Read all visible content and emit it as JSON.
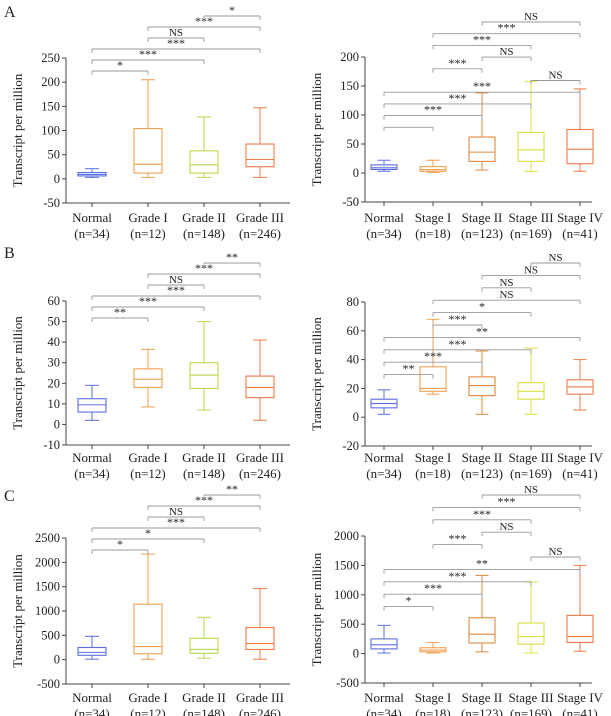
{
  "panel_labels": [
    "A",
    "B",
    "C"
  ],
  "colors": {
    "normal": "#5a6fe0",
    "grade_i": "#f0a050",
    "grade_ii": "#b8d84a",
    "grade_iii": "#ee7a48",
    "stage_i": "#f0a050",
    "stage_ii": "#e08a40",
    "stage_iii": "#d8e040",
    "stage_iv": "#ee7a48",
    "bracket": "#999999",
    "axis": "#444444"
  },
  "chart_data": [
    {
      "id": "A-grade",
      "panel": "A",
      "type": "box",
      "ylabel": "Transcript per million",
      "ylim": [
        -50,
        250
      ],
      "yticks": [
        -50,
        0,
        50,
        100,
        150,
        200,
        250
      ],
      "categories": [
        [
          "Normal",
          "(n=34)"
        ],
        [
          "Grade I",
          "(n=12)"
        ],
        [
          "Grade II",
          "(n=148)"
        ],
        [
          "Grade III",
          "(n=246)"
        ]
      ],
      "colors": [
        "normal",
        "grade_i",
        "grade_ii",
        "grade_iii"
      ],
      "boxes": [
        {
          "min": 3,
          "q1": 6,
          "median": 9,
          "q3": 13,
          "max": 21
        },
        {
          "min": 3,
          "q1": 12,
          "median": 30,
          "q3": 104,
          "max": 205
        },
        {
          "min": 3,
          "q1": 12,
          "median": 29,
          "q3": 58,
          "max": 128
        },
        {
          "min": 3,
          "q1": 25,
          "median": 40,
          "q3": 72,
          "max": 147
        }
      ],
      "brackets": [
        {
          "a": 0,
          "b": 1,
          "label": "*"
        },
        {
          "a": 0,
          "b": 2,
          "label": "***"
        },
        {
          "a": 0,
          "b": 3,
          "label": "***"
        },
        {
          "a": 1,
          "b": 2,
          "label": "NS"
        },
        {
          "a": 1,
          "b": 3,
          "label": "***"
        },
        {
          "a": 2,
          "b": 3,
          "label": "*"
        }
      ]
    },
    {
      "id": "A-stage",
      "panel": "A",
      "type": "box",
      "ylabel": "Transcript per million",
      "ylim": [
        -50,
        200
      ],
      "yticks": [
        -50,
        0,
        50,
        100,
        150,
        200
      ],
      "categories": [
        [
          "Normal",
          "(n=34)"
        ],
        [
          "Stage I",
          "(n=18)"
        ],
        [
          "Stage II",
          "(n=123)"
        ],
        [
          "Stage III",
          "(n=169)"
        ],
        [
          "Stage IV",
          "(n=41)"
        ]
      ],
      "colors": [
        "normal",
        "stage_i",
        "stage_ii",
        "stage_iii",
        "stage_iv"
      ],
      "boxes": [
        {
          "min": 3,
          "q1": 6,
          "median": 9,
          "q3": 14,
          "max": 22
        },
        {
          "min": 1,
          "q1": 3,
          "median": 6,
          "q3": 11,
          "max": 22
        },
        {
          "min": 5,
          "q1": 20,
          "median": 36,
          "q3": 62,
          "max": 138
        },
        {
          "min": 3,
          "q1": 20,
          "median": 40,
          "q3": 70,
          "max": 158
        },
        {
          "min": 3,
          "q1": 16,
          "median": 41,
          "q3": 75,
          "max": 145
        }
      ],
      "brackets": [
        {
          "a": 0,
          "b": 1,
          "label": ""
        },
        {
          "a": 0,
          "b": 2,
          "label": "***"
        },
        {
          "a": 0,
          "b": 3,
          "label": "***"
        },
        {
          "a": 0,
          "b": 4,
          "label": "***"
        },
        {
          "a": 3,
          "b": 4,
          "label": "NS"
        },
        {
          "a": 1,
          "b": 2,
          "label": "***"
        },
        {
          "a": 2,
          "b": 3,
          "label": "NS"
        },
        {
          "a": 1,
          "b": 3,
          "label": "***"
        },
        {
          "a": 1,
          "b": 4,
          "label": "***"
        },
        {
          "a": 2,
          "b": 4,
          "label": "NS"
        }
      ]
    },
    {
      "id": "B-grade",
      "panel": "B",
      "type": "box",
      "ylabel": "Transcript per million",
      "ylim": [
        -10,
        60
      ],
      "yticks": [
        -10,
        0,
        10,
        20,
        30,
        40,
        50,
        60
      ],
      "categories": [
        [
          "Normal",
          "(n=34)"
        ],
        [
          "Grade I",
          "(n=12)"
        ],
        [
          "Grade II",
          "(n=148)"
        ],
        [
          "Grade III",
          "(n=246)"
        ]
      ],
      "colors": [
        "normal",
        "grade_i",
        "grade_ii",
        "grade_iii"
      ],
      "boxes": [
        {
          "min": 2,
          "q1": 6,
          "median": 9.5,
          "q3": 12.5,
          "max": 19
        },
        {
          "min": 8.5,
          "q1": 18,
          "median": 22,
          "q3": 27,
          "max": 36.5
        },
        {
          "min": 7,
          "q1": 17.5,
          "median": 24,
          "q3": 30,
          "max": 50
        },
        {
          "min": 2,
          "q1": 13,
          "median": 18,
          "q3": 23.5,
          "max": 41
        }
      ],
      "brackets": [
        {
          "a": 0,
          "b": 1,
          "label": "**"
        },
        {
          "a": 0,
          "b": 2,
          "label": "***"
        },
        {
          "a": 0,
          "b": 3,
          "label": "***"
        },
        {
          "a": 1,
          "b": 2,
          "label": "NS"
        },
        {
          "a": 1,
          "b": 3,
          "label": "***"
        },
        {
          "a": 2,
          "b": 3,
          "label": "**"
        }
      ]
    },
    {
      "id": "B-stage",
      "panel": "B",
      "type": "box",
      "ylabel": "Transcript per million",
      "ylim": [
        -20,
        80
      ],
      "yticks": [
        -20,
        0,
        20,
        40,
        60,
        80
      ],
      "categories": [
        [
          "Normal",
          "(n=34)"
        ],
        [
          "Stage I",
          "(n=18)"
        ],
        [
          "Stage II",
          "(n=123)"
        ],
        [
          "Stage III",
          "(n=169)"
        ],
        [
          "Stage IV",
          "(n=41)"
        ]
      ],
      "colors": [
        "normal",
        "stage_i",
        "stage_ii",
        "stage_iii",
        "stage_iv"
      ],
      "boxes": [
        {
          "min": 2,
          "q1": 6.5,
          "median": 9.5,
          "q3": 12.5,
          "max": 19
        },
        {
          "min": 16,
          "q1": 18,
          "median": 20,
          "q3": 35,
          "max": 68
        },
        {
          "min": 2,
          "q1": 15,
          "median": 22,
          "q3": 28,
          "max": 46
        },
        {
          "min": 2,
          "q1": 12.5,
          "median": 18,
          "q3": 24,
          "max": 48
        },
        {
          "min": 5,
          "q1": 16,
          "median": 21,
          "q3": 26,
          "max": 40
        }
      ],
      "brackets": [
        {
          "a": 0,
          "b": 1,
          "label": "**"
        },
        {
          "a": 0,
          "b": 2,
          "label": "***"
        },
        {
          "a": 0,
          "b": 3,
          "label": "***"
        },
        {
          "a": 0,
          "b": 4,
          "label": "**"
        },
        {
          "a": 1,
          "b": 2,
          "label": "***"
        },
        {
          "a": 1,
          "b": 3,
          "label": "*"
        },
        {
          "a": 1,
          "b": 4,
          "label": "NS"
        },
        {
          "a": 2,
          "b": 3,
          "label": "NS"
        },
        {
          "a": 2,
          "b": 4,
          "label": "NS"
        },
        {
          "a": 3,
          "b": 4,
          "label": "NS"
        }
      ]
    },
    {
      "id": "C-grade",
      "panel": "C",
      "type": "box",
      "ylabel": "Transcript per million",
      "ylim": [
        -500,
        2500
      ],
      "yticks": [
        -500,
        0,
        500,
        1000,
        1500,
        2000,
        2500
      ],
      "categories": [
        [
          "Normal",
          "(n=34)"
        ],
        [
          "Grade I",
          "(n=12)"
        ],
        [
          "Grade II",
          "(n=148)"
        ],
        [
          "Grade III",
          "(n=246)"
        ]
      ],
      "colors": [
        "normal",
        "grade_i",
        "grade_ii",
        "grade_iii"
      ],
      "boxes": [
        {
          "min": 10,
          "q1": 90,
          "median": 150,
          "q3": 250,
          "max": 480
        },
        {
          "min": 10,
          "q1": 120,
          "median": 270,
          "q3": 1140,
          "max": 2170
        },
        {
          "min": 30,
          "q1": 130,
          "median": 210,
          "q3": 440,
          "max": 870
        },
        {
          "min": 10,
          "q1": 210,
          "median": 330,
          "q3": 660,
          "max": 1460
        }
      ],
      "brackets": [
        {
          "a": 0,
          "b": 1,
          "label": "*"
        },
        {
          "a": 0,
          "b": 2,
          "label": "*"
        },
        {
          "a": 0,
          "b": 3,
          "label": "***"
        },
        {
          "a": 1,
          "b": 2,
          "label": "NS"
        },
        {
          "a": 1,
          "b": 3,
          "label": "***"
        },
        {
          "a": 2,
          "b": 3,
          "label": "**"
        }
      ]
    },
    {
      "id": "C-stage",
      "panel": "C",
      "type": "box",
      "ylabel": "Transcript per million",
      "ylim": [
        -500,
        2000
      ],
      "yticks": [
        -500,
        0,
        500,
        1000,
        1500,
        2000
      ],
      "categories": [
        [
          "Normal",
          "(n=34)"
        ],
        [
          "Stage I",
          "(n=18)"
        ],
        [
          "Stage II",
          "(n=123)"
        ],
        [
          "Stage III",
          "(n=169)"
        ],
        [
          "Stage IV",
          "(n=41)"
        ]
      ],
      "colors": [
        "normal",
        "stage_i",
        "stage_ii",
        "stage_iii",
        "stage_iv"
      ],
      "boxes": [
        {
          "min": 10,
          "q1": 80,
          "median": 150,
          "q3": 250,
          "max": 480
        },
        {
          "min": 10,
          "q1": 30,
          "median": 60,
          "q3": 100,
          "max": 190
        },
        {
          "min": 30,
          "q1": 180,
          "median": 330,
          "q3": 610,
          "max": 1330
        },
        {
          "min": 10,
          "q1": 160,
          "median": 290,
          "q3": 520,
          "max": 1220
        },
        {
          "min": 40,
          "q1": 190,
          "median": 290,
          "q3": 650,
          "max": 1500
        }
      ],
      "brackets": [
        {
          "a": 0,
          "b": 1,
          "label": "*"
        },
        {
          "a": 0,
          "b": 2,
          "label": "***"
        },
        {
          "a": 0,
          "b": 3,
          "label": "***"
        },
        {
          "a": 0,
          "b": 4,
          "label": "**"
        },
        {
          "a": 3,
          "b": 4,
          "label": "NS"
        },
        {
          "a": 1,
          "b": 2,
          "label": "***"
        },
        {
          "a": 2,
          "b": 3,
          "label": "NS"
        },
        {
          "a": 1,
          "b": 3,
          "label": "***"
        },
        {
          "a": 1,
          "b": 4,
          "label": "***"
        },
        {
          "a": 2,
          "b": 4,
          "label": "NS"
        }
      ]
    }
  ]
}
